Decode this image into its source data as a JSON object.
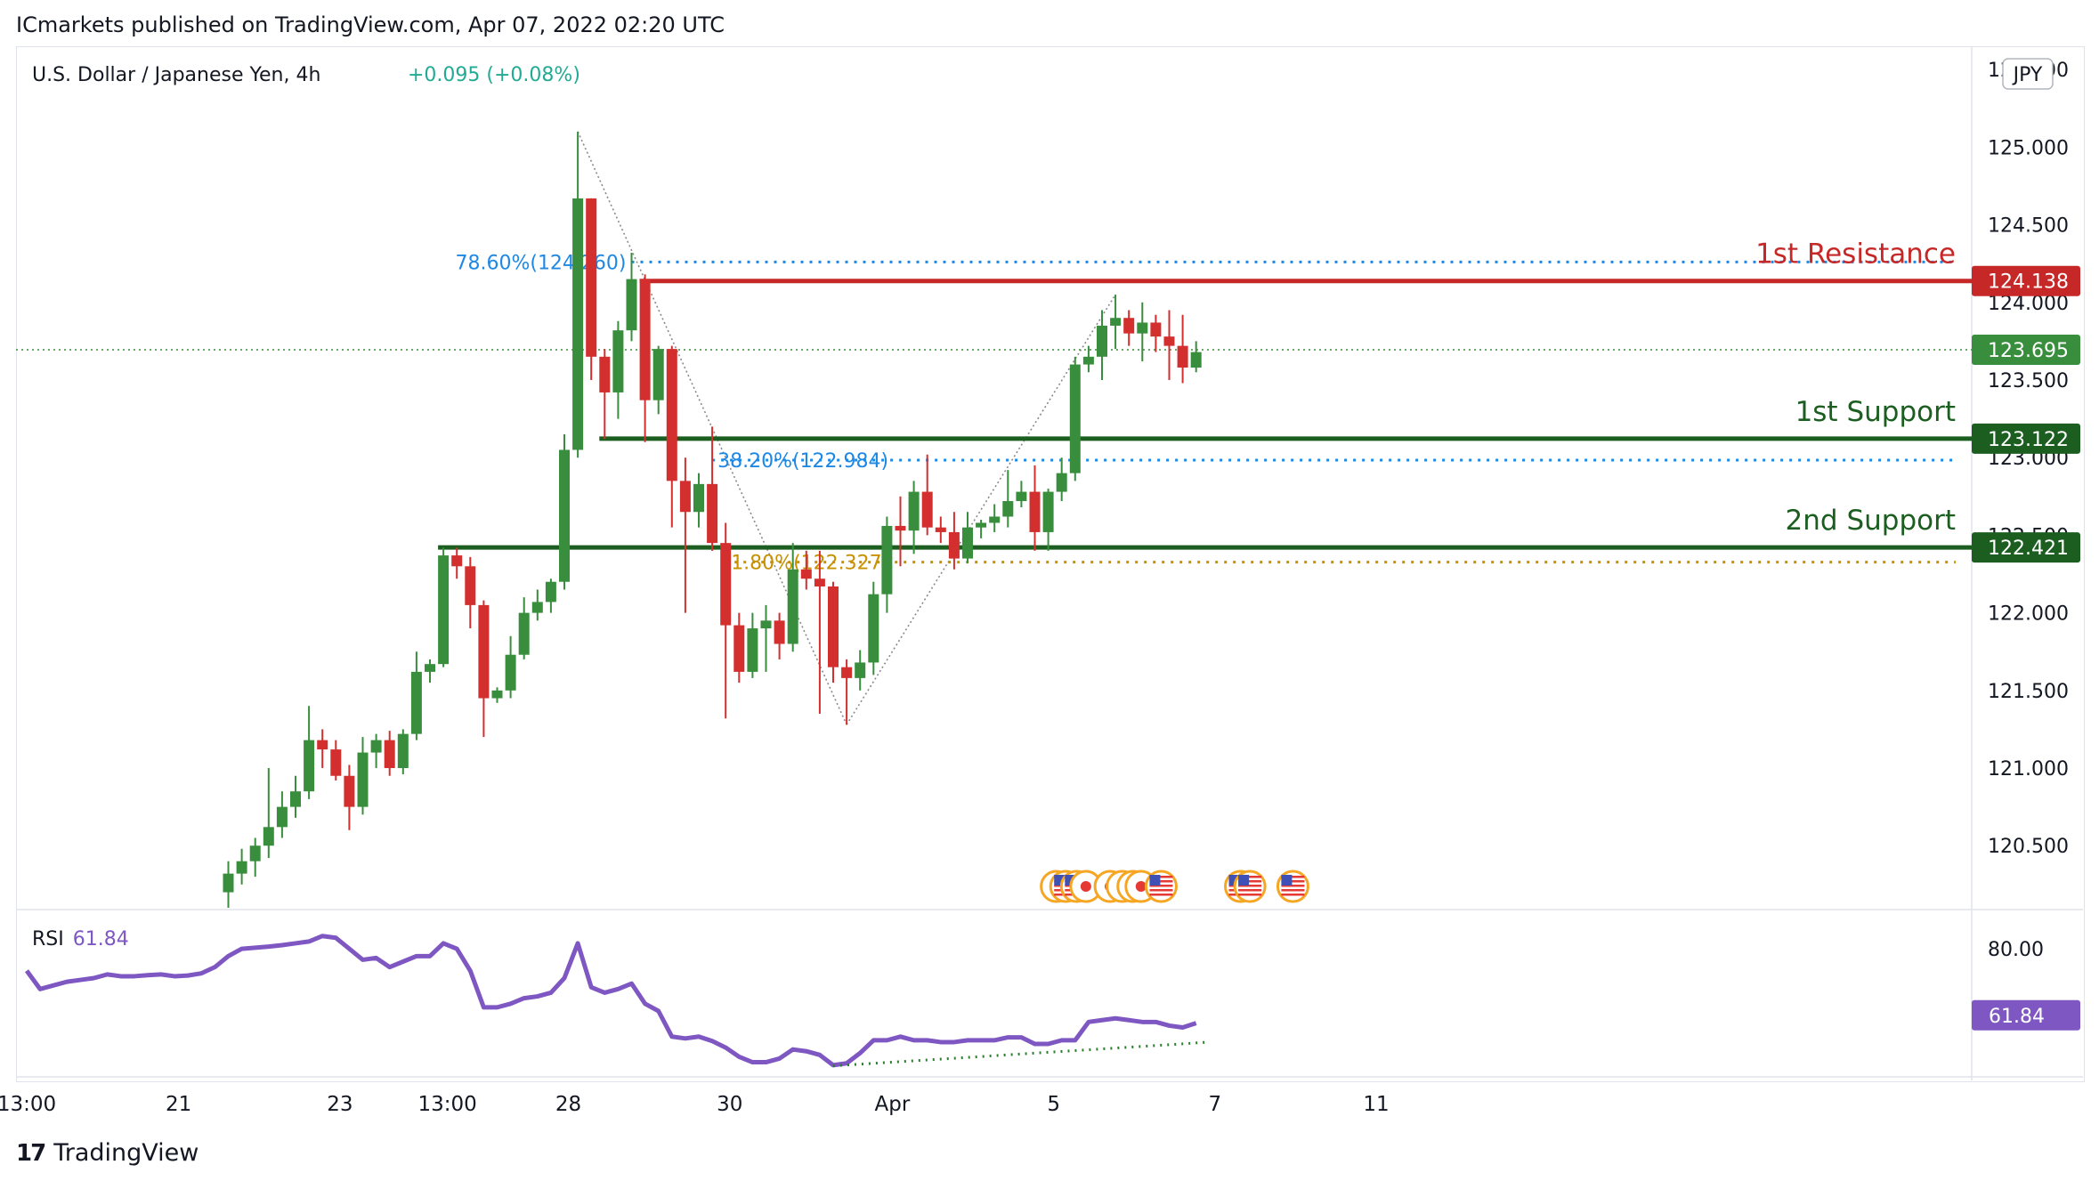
{
  "header": {
    "published": "ICmarkets published on TradingView.com, Apr 07, 2022 02:20 UTC"
  },
  "symbol": {
    "name": "U.S. Dollar / Japanese Yen, 4h",
    "change": "+0.095 (+0.08%)"
  },
  "currency": "JPY",
  "footer": {
    "brand": "TradingView",
    "logo": "17"
  },
  "chart_data": {
    "type": "candlestick",
    "ylim": [
      120.1,
      125.65
    ],
    "price_ticks": [
      "125.500",
      "125.000",
      "124.500",
      "124.000",
      "123.500",
      "123.000",
      "122.500",
      "122.000",
      "121.500",
      "121.000",
      "120.500"
    ],
    "time_ticks": [
      {
        "label": "13:00",
        "bar": 0
      },
      {
        "label": "21",
        "bar": 11.3
      },
      {
        "label": "23",
        "bar": 23.3
      },
      {
        "label": "13:00",
        "bar": 31.3
      },
      {
        "label": "28",
        "bar": 40.3
      },
      {
        "label": "30",
        "bar": 52.3
      },
      {
        "label": "Apr",
        "bar": 64.4
      },
      {
        "label": "5",
        "bar": 76.4
      },
      {
        "label": "7",
        "bar": 88.4
      },
      {
        "label": "11",
        "bar": 100.4
      }
    ],
    "candles": [
      {
        "i": 15,
        "o": 120.2,
        "h": 120.4,
        "l": 120.1,
        "c": 120.32
      },
      {
        "i": 16,
        "o": 120.32,
        "h": 120.48,
        "l": 120.25,
        "c": 120.4
      },
      {
        "i": 17,
        "o": 120.4,
        "h": 120.55,
        "l": 120.3,
        "c": 120.5
      },
      {
        "i": 18,
        "o": 120.5,
        "h": 121.0,
        "l": 120.42,
        "c": 120.62
      },
      {
        "i": 19,
        "o": 120.62,
        "h": 120.85,
        "l": 120.55,
        "c": 120.75
      },
      {
        "i": 20,
        "o": 120.75,
        "h": 120.95,
        "l": 120.68,
        "c": 120.85
      },
      {
        "i": 21,
        "o": 120.85,
        "h": 121.4,
        "l": 120.8,
        "c": 121.18
      },
      {
        "i": 22,
        "o": 121.18,
        "h": 121.25,
        "l": 121.0,
        "c": 121.12
      },
      {
        "i": 23,
        "o": 121.12,
        "h": 121.18,
        "l": 120.92,
        "c": 120.95
      },
      {
        "i": 24,
        "o": 120.95,
        "h": 121.02,
        "l": 120.6,
        "c": 120.75
      },
      {
        "i": 25,
        "o": 120.75,
        "h": 121.2,
        "l": 120.7,
        "c": 121.1
      },
      {
        "i": 26,
        "o": 121.1,
        "h": 121.22,
        "l": 121.0,
        "c": 121.18
      },
      {
        "i": 27,
        "o": 121.18,
        "h": 121.24,
        "l": 120.95,
        "c": 121.0
      },
      {
        "i": 28,
        "o": 121.0,
        "h": 121.25,
        "l": 120.96,
        "c": 121.22
      },
      {
        "i": 29,
        "o": 121.22,
        "h": 121.75,
        "l": 121.18,
        "c": 121.62
      },
      {
        "i": 30,
        "o": 121.62,
        "h": 121.7,
        "l": 121.55,
        "c": 121.67
      },
      {
        "i": 31,
        "o": 121.67,
        "h": 122.42,
        "l": 121.65,
        "c": 122.37
      },
      {
        "i": 32,
        "o": 122.37,
        "h": 122.42,
        "l": 122.22,
        "c": 122.3
      },
      {
        "i": 33,
        "o": 122.3,
        "h": 122.36,
        "l": 121.9,
        "c": 122.05
      },
      {
        "i": 34,
        "o": 122.05,
        "h": 122.08,
        "l": 121.2,
        "c": 121.45
      },
      {
        "i": 35,
        "o": 121.45,
        "h": 121.52,
        "l": 121.42,
        "c": 121.5
      },
      {
        "i": 36,
        "o": 121.5,
        "h": 121.85,
        "l": 121.45,
        "c": 121.73
      },
      {
        "i": 37,
        "o": 121.73,
        "h": 122.1,
        "l": 121.7,
        "c": 122.0
      },
      {
        "i": 38,
        "o": 122.0,
        "h": 122.15,
        "l": 121.95,
        "c": 122.07
      },
      {
        "i": 39,
        "o": 122.07,
        "h": 122.22,
        "l": 122.0,
        "c": 122.2
      },
      {
        "i": 40,
        "o": 122.2,
        "h": 123.15,
        "l": 122.15,
        "c": 123.05
      },
      {
        "i": 41,
        "o": 123.05,
        "h": 125.1,
        "l": 123.0,
        "c": 124.67
      },
      {
        "i": 42,
        "o": 124.67,
        "h": 124.67,
        "l": 123.5,
        "c": 123.65
      },
      {
        "i": 43,
        "o": 123.65,
        "h": 123.7,
        "l": 123.12,
        "c": 123.42
      },
      {
        "i": 44,
        "o": 123.42,
        "h": 123.88,
        "l": 123.25,
        "c": 123.82
      },
      {
        "i": 45,
        "o": 123.82,
        "h": 124.32,
        "l": 123.75,
        "c": 124.15
      },
      {
        "i": 46,
        "o": 124.15,
        "h": 124.18,
        "l": 123.1,
        "c": 123.37
      },
      {
        "i": 47,
        "o": 123.37,
        "h": 123.72,
        "l": 123.28,
        "c": 123.7
      },
      {
        "i": 48,
        "o": 123.7,
        "h": 123.72,
        "l": 122.55,
        "c": 122.85
      },
      {
        "i": 49,
        "o": 122.85,
        "h": 123.0,
        "l": 122.0,
        "c": 122.65
      },
      {
        "i": 50,
        "o": 122.65,
        "h": 122.9,
        "l": 122.55,
        "c": 122.83
      },
      {
        "i": 51,
        "o": 122.83,
        "h": 123.2,
        "l": 122.4,
        "c": 122.45
      },
      {
        "i": 52,
        "o": 122.45,
        "h": 122.58,
        "l": 121.32,
        "c": 121.92
      },
      {
        "i": 53,
        "o": 121.92,
        "h": 122.0,
        "l": 121.55,
        "c": 121.62
      },
      {
        "i": 54,
        "o": 121.62,
        "h": 122.0,
        "l": 121.58,
        "c": 121.9
      },
      {
        "i": 55,
        "o": 121.9,
        "h": 122.05,
        "l": 121.62,
        "c": 121.95
      },
      {
        "i": 56,
        "o": 121.95,
        "h": 122.0,
        "l": 121.7,
        "c": 121.8
      },
      {
        "i": 57,
        "o": 121.8,
        "h": 122.45,
        "l": 121.75,
        "c": 122.28
      },
      {
        "i": 58,
        "o": 122.28,
        "h": 122.4,
        "l": 122.15,
        "c": 122.22
      },
      {
        "i": 59,
        "o": 122.22,
        "h": 122.4,
        "l": 121.35,
        "c": 122.17
      },
      {
        "i": 60,
        "o": 122.17,
        "h": 122.2,
        "l": 121.55,
        "c": 121.65
      },
      {
        "i": 61,
        "o": 121.65,
        "h": 121.7,
        "l": 121.28,
        "c": 121.58
      },
      {
        "i": 62,
        "o": 121.58,
        "h": 121.76,
        "l": 121.5,
        "c": 121.68
      },
      {
        "i": 63,
        "o": 121.68,
        "h": 122.2,
        "l": 121.6,
        "c": 122.12
      },
      {
        "i": 64,
        "o": 122.12,
        "h": 122.62,
        "l": 122.0,
        "c": 122.56
      },
      {
        "i": 65,
        "o": 122.56,
        "h": 122.75,
        "l": 122.3,
        "c": 122.53
      },
      {
        "i": 66,
        "o": 122.53,
        "h": 122.85,
        "l": 122.38,
        "c": 122.78
      },
      {
        "i": 67,
        "o": 122.78,
        "h": 123.02,
        "l": 122.5,
        "c": 122.55
      },
      {
        "i": 68,
        "o": 122.55,
        "h": 122.62,
        "l": 122.45,
        "c": 122.52
      },
      {
        "i": 69,
        "o": 122.52,
        "h": 122.65,
        "l": 122.28,
        "c": 122.35
      },
      {
        "i": 70,
        "o": 122.35,
        "h": 122.65,
        "l": 122.32,
        "c": 122.55
      },
      {
        "i": 71,
        "o": 122.55,
        "h": 122.6,
        "l": 122.48,
        "c": 122.58
      },
      {
        "i": 72,
        "o": 122.58,
        "h": 122.7,
        "l": 122.52,
        "c": 122.62
      },
      {
        "i": 73,
        "o": 122.62,
        "h": 122.92,
        "l": 122.55,
        "c": 122.72
      },
      {
        "i": 74,
        "o": 122.72,
        "h": 122.85,
        "l": 122.68,
        "c": 122.78
      },
      {
        "i": 75,
        "o": 122.78,
        "h": 122.95,
        "l": 122.4,
        "c": 122.52
      },
      {
        "i": 76,
        "o": 122.52,
        "h": 122.8,
        "l": 122.4,
        "c": 122.78
      },
      {
        "i": 77,
        "o": 122.78,
        "h": 123.0,
        "l": 122.72,
        "c": 122.9
      },
      {
        "i": 78,
        "o": 122.9,
        "h": 123.65,
        "l": 122.85,
        "c": 123.6
      },
      {
        "i": 79,
        "o": 123.6,
        "h": 123.72,
        "l": 123.55,
        "c": 123.65
      },
      {
        "i": 80,
        "o": 123.65,
        "h": 123.95,
        "l": 123.5,
        "c": 123.85
      },
      {
        "i": 81,
        "o": 123.85,
        "h": 124.05,
        "l": 123.7,
        "c": 123.9
      },
      {
        "i": 82,
        "o": 123.9,
        "h": 123.95,
        "l": 123.72,
        "c": 123.8
      },
      {
        "i": 83,
        "o": 123.8,
        "h": 124.0,
        "l": 123.62,
        "c": 123.87
      },
      {
        "i": 84,
        "o": 123.87,
        "h": 123.92,
        "l": 123.68,
        "c": 123.78
      },
      {
        "i": 85,
        "o": 123.78,
        "h": 123.95,
        "l": 123.5,
        "c": 123.72
      },
      {
        "i": 86,
        "o": 123.72,
        "h": 123.92,
        "l": 123.48,
        "c": 123.58
      },
      {
        "i": 87,
        "o": 123.58,
        "h": 123.75,
        "l": 123.55,
        "c": 123.68
      }
    ],
    "levels": [
      {
        "name": "1st Resistance",
        "value": 124.138,
        "label": "124.138",
        "color": "#c62828",
        "from_bar": 46
      },
      {
        "name": "1st Support",
        "value": 123.122,
        "label": "123.122",
        "color": "#1b5e20",
        "from_bar": 43
      },
      {
        "name": "2nd Support",
        "value": 122.421,
        "label": "122.421",
        "color": "#1b5e20",
        "from_bar": 31
      }
    ],
    "current_price": {
      "value": 123.695,
      "label": "123.695",
      "color": "#388e3c"
    },
    "fib_levels": [
      {
        "label": "78.60%(124.260)",
        "value": 124.26,
        "color": "#1e88e5",
        "from_bar": 45,
        "label_side": "left"
      },
      {
        "label": "38.20%(122.984)",
        "value": 122.984,
        "color": "#1e88e5",
        "from_bar": 51,
        "label_side": "right"
      },
      {
        "label": "1.80%(122.327)",
        "value": 122.327,
        "color": "#c79100",
        "from_bar": 52,
        "label_side": "right"
      }
    ],
    "fib_trend_lines": [
      {
        "from": {
          "bar": 41,
          "price": 125.1
        },
        "to": {
          "bar": 61,
          "price": 121.28
        }
      },
      {
        "from": {
          "bar": 61,
          "price": 121.28
        },
        "to": {
          "bar": 81,
          "price": 124.05
        }
      }
    ],
    "rsi": {
      "label": "RSI",
      "value_label": "61.84",
      "value": 61.84,
      "ylim": [
        45,
        90
      ],
      "tick": "80.00",
      "color": "#7e57c2",
      "values": [
        74,
        69,
        70,
        71,
        71.5,
        72,
        73,
        72.5,
        72.5,
        72.8,
        73,
        72.5,
        72.7,
        73.3,
        75,
        78,
        80,
        80.3,
        80.6,
        81,
        81.5,
        82,
        83.5,
        83,
        80,
        77,
        77.5,
        75,
        76.5,
        78,
        78,
        81.5,
        80,
        74,
        64,
        64,
        65,
        66.5,
        67,
        68,
        72,
        81.5,
        69.5,
        68,
        69,
        70.5,
        65,
        63,
        56,
        55.5,
        56,
        54.8,
        53,
        50.5,
        49,
        49,
        50,
        52.5,
        52,
        51,
        48.2,
        48.7,
        51.5,
        55,
        55,
        56,
        55,
        55,
        54.5,
        54.5,
        55,
        55,
        55,
        55.8,
        55.8,
        54,
        54,
        55,
        55,
        60,
        60.5,
        61,
        60.5,
        60,
        60,
        59,
        58.5,
        59.7
      ],
      "divergence": {
        "from": {
          "bar": 60,
          "value": 48
        },
        "to": {
          "bar": 88,
          "value": 54.5
        }
      }
    },
    "event_markers": [
      {
        "bar": 76.6,
        "kind": "dot"
      },
      {
        "bar": 77.3,
        "kind": "flag-us"
      },
      {
        "bar": 78.1,
        "kind": "flag-us"
      },
      {
        "bar": 78.8,
        "kind": "dot"
      },
      {
        "bar": 80.6,
        "kind": "dot"
      },
      {
        "bar": 81.5,
        "kind": "dot"
      },
      {
        "bar": 82.3,
        "kind": "dot"
      },
      {
        "bar": 82.9,
        "kind": "dot"
      },
      {
        "bar": 84.4,
        "kind": "flag-us"
      },
      {
        "bar": 90.3,
        "kind": "flag-us"
      },
      {
        "bar": 91.0,
        "kind": "flag-us"
      },
      {
        "bar": 94.2,
        "kind": "flag-us"
      }
    ]
  }
}
